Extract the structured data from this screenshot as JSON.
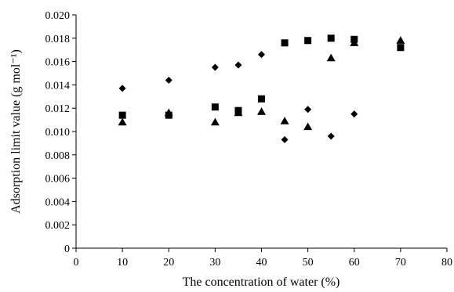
{
  "chart_data": {
    "type": "scatter",
    "xlabel": "The concentration of water (%)",
    "ylabel": "Adsorption limit value (g mol⁻¹)",
    "xlim": [
      0,
      80
    ],
    "ylim": [
      0,
      0.02
    ],
    "x_ticks": [
      "0",
      "10",
      "20",
      "30",
      "40",
      "50",
      "60",
      "70",
      "80"
    ],
    "y_ticks": [
      "0",
      "0.002",
      "0.004",
      "0.006",
      "0.008",
      "0.010",
      "0.012",
      "0.014",
      "0.016",
      "0.018",
      "0.020"
    ],
    "grid": false,
    "legend": "none",
    "series": [
      {
        "marker": "diamond",
        "points": [
          [
            10,
            0.0137
          ],
          [
            20,
            0.0144
          ],
          [
            30,
            0.0155
          ],
          [
            35,
            0.0157
          ],
          [
            40,
            0.0166
          ],
          [
            45,
            0.0093
          ],
          [
            50,
            0.0119
          ],
          [
            55,
            0.0096
          ],
          [
            60,
            0.0115
          ]
        ]
      },
      {
        "marker": "square",
        "points": [
          [
            10,
            0.0114
          ],
          [
            20,
            0.0114
          ],
          [
            30,
            0.0121
          ],
          [
            35,
            0.0118
          ],
          [
            40,
            0.0128
          ],
          [
            45,
            0.0176
          ],
          [
            50,
            0.0178
          ],
          [
            55,
            0.018
          ],
          [
            60,
            0.0179
          ],
          [
            70,
            0.0172
          ]
        ]
      },
      {
        "marker": "triangle",
        "points": [
          [
            10,
            0.0108
          ],
          [
            20,
            0.0116
          ],
          [
            30,
            0.0108
          ],
          [
            35,
            0.0116
          ],
          [
            40,
            0.0117
          ],
          [
            45,
            0.0109
          ],
          [
            50,
            0.0104
          ],
          [
            55,
            0.0163
          ],
          [
            60,
            0.0176
          ],
          [
            70,
            0.0178
          ]
        ]
      }
    ]
  }
}
